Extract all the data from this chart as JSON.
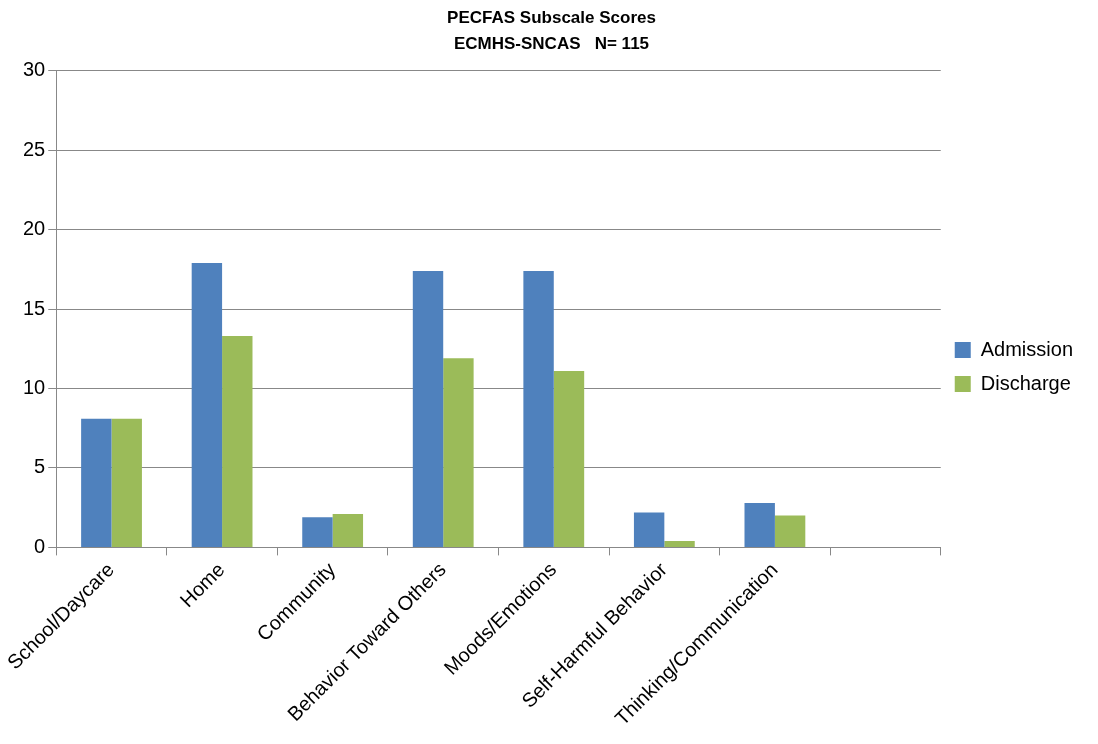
{
  "chart_data": {
    "type": "bar",
    "title": "PECFAS Subscale Scores",
    "subtitle": "ECMHS-SNCAS   N= 115",
    "categories": [
      "School/Daycare",
      "Home",
      "Community",
      "Behavior Toward Others",
      "Moods/Emotions",
      "Self-Harmful Behavior",
      "Thinking/Communication",
      null
    ],
    "series": [
      {
        "name": "Admission",
        "color": "#4f81bd",
        "values": [
          8.1,
          17.9,
          1.9,
          17.4,
          17.4,
          2.2,
          2.8,
          null
        ]
      },
      {
        "name": "Discharge",
        "color": "#9bbb59",
        "values": [
          8.1,
          13.3,
          2.1,
          11.9,
          11.1,
          0.4,
          2.0,
          null
        ]
      }
    ],
    "ylim": [
      0,
      30
    ],
    "yticks": [
      0,
      5,
      10,
      15,
      20,
      25,
      30
    ],
    "grid": "y",
    "legend": "right"
  }
}
